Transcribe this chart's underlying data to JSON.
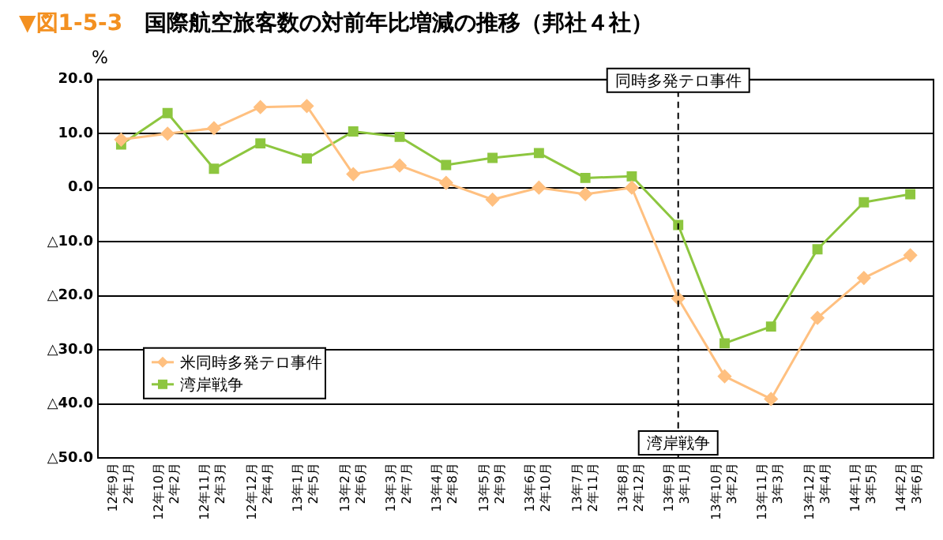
{
  "chart_data": {
    "type": "line",
    "title": "▼図1-5-3　国際航空旅客数の対前年比増減の推移（邦社４社）",
    "ylabel": "%",
    "categories": [
      "12年9月 2年1月",
      "12年10月 2年2月",
      "12年11月 2年3月",
      "12年12月 2年4月",
      "13年1月 2年5月",
      "13年2月 2年6月",
      "13年3月 2年7月",
      "13年4月 2年8月",
      "13年5月 2年9月",
      "13年6月 2年10月",
      "13年7月 2年11月",
      "13年8月 2年12月",
      "13年9月 3年1月",
      "13年10月 3年2月",
      "13年11月 3年3月",
      "13年12月 3年4月",
      "14年1月 3年5月",
      "14年2月 3年6月"
    ],
    "series": [
      {
        "name": "米同時多発テロ事件",
        "color": "#ffc080",
        "marker": "diamond",
        "values": [
          8.9,
          10.0,
          11.0,
          14.9,
          15.1,
          2.5,
          4.1,
          0.9,
          -2.2,
          0.0,
          -1.2,
          0.0,
          -20.5,
          -34.9,
          -39.1,
          -24.1,
          -16.7,
          -12.5
        ]
      },
      {
        "name": "湾岸戦争",
        "color": "#8dc63f",
        "marker": "square",
        "values": [
          8.0,
          13.8,
          3.5,
          8.2,
          5.4,
          10.4,
          9.4,
          4.2,
          5.5,
          6.4,
          1.8,
          2.1,
          -6.9,
          -28.8,
          -25.7,
          -11.4,
          -2.7,
          -1.2
        ]
      }
    ],
    "ylim": [
      -50,
      20
    ],
    "yticks": [
      {
        "value": -50,
        "label": "△50.0"
      },
      {
        "value": -40,
        "label": "△40.0"
      },
      {
        "value": -30,
        "label": "△30.0"
      },
      {
        "value": -20,
        "label": "△20.0"
      },
      {
        "value": -10,
        "label": "△10.0"
      },
      {
        "value": 0,
        "label": "0.0"
      },
      {
        "value": 10,
        "label": "10.0"
      },
      {
        "value": 20,
        "label": "20.0"
      }
    ],
    "ref_lines": [
      {
        "axis": "x",
        "value": "13年9月 3年1月",
        "label": "同時多発テロ事件",
        "line_style": "dashed",
        "color": "#000000"
      }
    ],
    "annotations": [
      {
        "text": "湾岸戦争",
        "x": "13年9月 3年1月"
      }
    ],
    "grid": "y",
    "legend": "bottom left",
    "line_style": "solid"
  }
}
